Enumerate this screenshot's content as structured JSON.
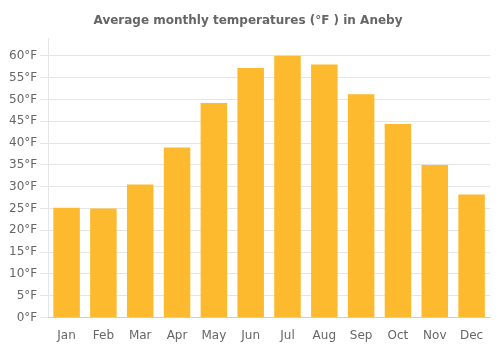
{
  "chart_data": {
    "type": "bar",
    "title": "Average monthly temperatures (°F ) in Aneby",
    "categories": [
      "Jan",
      "Feb",
      "Mar",
      "Apr",
      "May",
      "Jun",
      "Jul",
      "Aug",
      "Sep",
      "Oct",
      "Nov",
      "Dec"
    ],
    "values": [
      25.2,
      25.0,
      30.5,
      39.0,
      49.2,
      57.2,
      60.0,
      58.0,
      51.2,
      44.4,
      35.0,
      28.2
    ],
    "color": "#FDBA2E",
    "ylim": [
      0,
      64
    ],
    "yticks": [
      {
        "value": 0,
        "label": "0°F"
      },
      {
        "value": 5,
        "label": "5°F"
      },
      {
        "value": 10,
        "label": "10°F"
      },
      {
        "value": 15,
        "label": "15°F"
      },
      {
        "value": 20,
        "label": "20°F"
      },
      {
        "value": 25,
        "label": "25°F"
      },
      {
        "value": 30,
        "label": "30°F"
      },
      {
        "value": 35,
        "label": "35°F"
      },
      {
        "value": 40,
        "label": "40°F"
      },
      {
        "value": 45,
        "label": "45°F"
      },
      {
        "value": 50,
        "label": "50°F"
      },
      {
        "value": 55,
        "label": "55°F"
      },
      {
        "value": 60,
        "label": "60°F"
      }
    ],
    "grid": true
  }
}
